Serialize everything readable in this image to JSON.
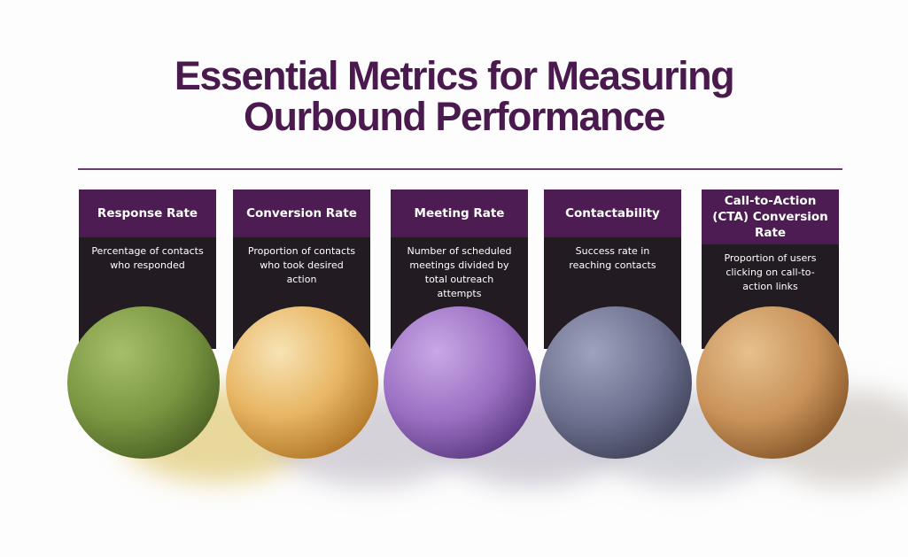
{
  "header": {
    "title_lines": [
      "Essential Metrics for Measuring",
      "Ourbound Performance"
    ]
  },
  "cards": [
    {
      "title": "Response Rate",
      "description": "Percentage of contacts who responded"
    },
    {
      "title": "Conversion Rate",
      "description": "Proportion of contacts who took desired action"
    },
    {
      "title": "Meeting Rate",
      "description": "Number of scheduled meetings divided by total outreach attempts"
    },
    {
      "title": "Contactability",
      "description": "Success rate in reaching contacts"
    },
    {
      "title": "Call-to-Action (CTA) Conversion Rate",
      "description": "Proportion of users clicking on call-to-action links"
    }
  ]
}
